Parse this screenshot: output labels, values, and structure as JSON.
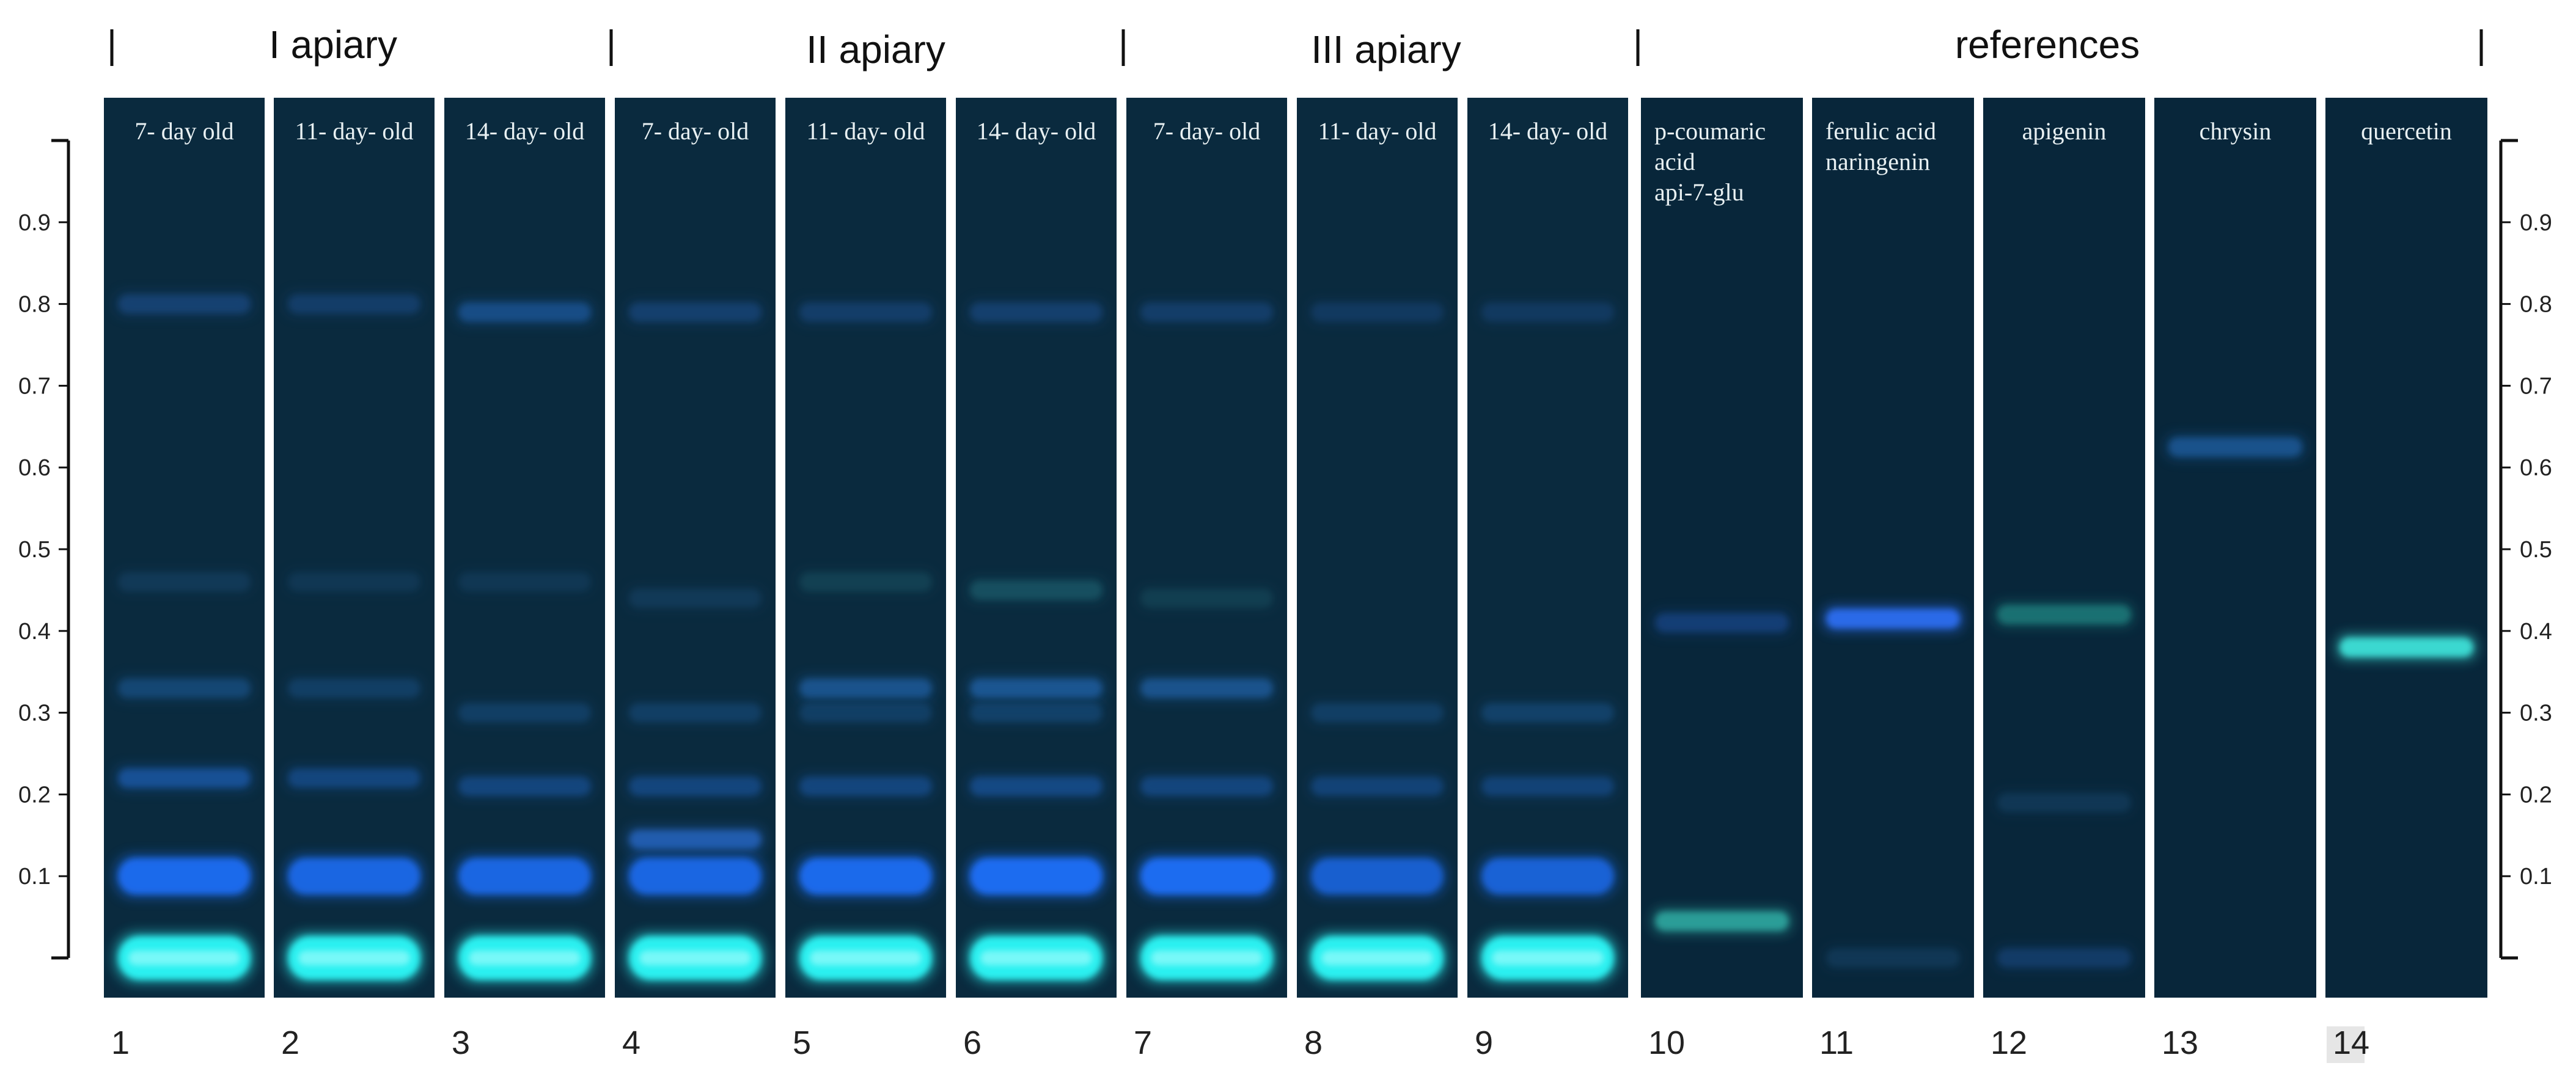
{
  "figure": {
    "background": "#ffffff",
    "plate_color": "#0a2a3e",
    "separator_color": "#ffffff"
  },
  "groups": [
    {
      "title": "I apiary",
      "lanes": [
        1,
        2,
        3
      ]
    },
    {
      "title": "II apiary",
      "lanes": [
        4,
        5,
        6
      ]
    },
    {
      "title": "III apiary",
      "lanes": [
        7,
        8,
        9
      ]
    },
    {
      "title": "references",
      "lanes": [
        10,
        11,
        12,
        13,
        14
      ]
    }
  ],
  "rf_axis": {
    "ticks": [
      "0.9",
      "0.8",
      "0.7",
      "0.6",
      "0.5",
      "0.4",
      "0.3",
      "0.2",
      "0.1"
    ],
    "tick_values": [
      0.9,
      0.8,
      0.7,
      0.6,
      0.5,
      0.4,
      0.3,
      0.2,
      0.1
    ],
    "min": 0.0,
    "max": 1.0
  },
  "lanes": [
    {
      "number": "1",
      "label": [
        "7- day old"
      ],
      "bands": [
        {
          "rf": 0.8,
          "color": "#1a4f8f",
          "intensity": 0.5
        },
        {
          "rf": 0.46,
          "color": "#1a4f7a",
          "intensity": 0.3
        },
        {
          "rf": 0.33,
          "color": "#1f5c9a",
          "intensity": 0.45
        },
        {
          "rf": 0.22,
          "color": "#1f5fb5",
          "intensity": 0.6
        },
        {
          "rf": 0.1,
          "color": "#1e6cf0",
          "intensity": 0.95
        },
        {
          "rf": 0.0,
          "color": "#2cf0f0",
          "intensity": 1.0
        }
      ]
    },
    {
      "number": "2",
      "label": [
        "11- day- old"
      ],
      "bands": [
        {
          "rf": 0.8,
          "color": "#1a4f8f",
          "intensity": 0.4
        },
        {
          "rf": 0.46,
          "color": "#1a4f7a",
          "intensity": 0.25
        },
        {
          "rf": 0.33,
          "color": "#1f5c9a",
          "intensity": 0.3
        },
        {
          "rf": 0.22,
          "color": "#1f5fb5",
          "intensity": 0.4
        },
        {
          "rf": 0.1,
          "color": "#1e6cf0",
          "intensity": 0.85
        },
        {
          "rf": 0.0,
          "color": "#2cf0f0",
          "intensity": 1.0
        }
      ]
    },
    {
      "number": "3",
      "label": [
        "14- day- old"
      ],
      "bands": [
        {
          "rf": 0.79,
          "color": "#1a5aa0",
          "intensity": 0.6
        },
        {
          "rf": 0.46,
          "color": "#1a4f7a",
          "intensity": 0.25
        },
        {
          "rf": 0.3,
          "color": "#1f5c9a",
          "intensity": 0.3
        },
        {
          "rf": 0.21,
          "color": "#1f5fb5",
          "intensity": 0.4
        },
        {
          "rf": 0.1,
          "color": "#1e6cf0",
          "intensity": 0.85
        },
        {
          "rf": 0.0,
          "color": "#2cf0f0",
          "intensity": 1.0
        }
      ]
    },
    {
      "number": "4",
      "label": [
        "7- day- old"
      ],
      "bands": [
        {
          "rf": 0.79,
          "color": "#1a4f8f",
          "intensity": 0.45
        },
        {
          "rf": 0.44,
          "color": "#1a4f7a",
          "intensity": 0.3
        },
        {
          "rf": 0.3,
          "color": "#1f5c9a",
          "intensity": 0.3
        },
        {
          "rf": 0.21,
          "color": "#1f5fb5",
          "intensity": 0.4
        },
        {
          "rf": 0.145,
          "color": "#2a6fd8",
          "intensity": 0.6
        },
        {
          "rf": 0.1,
          "color": "#1e6cf0",
          "intensity": 0.85
        },
        {
          "rf": 0.0,
          "color": "#2cf0f0",
          "intensity": 1.0
        }
      ]
    },
    {
      "number": "5",
      "label": [
        "11- day- old"
      ],
      "bands": [
        {
          "rf": 0.79,
          "color": "#1a4f8f",
          "intensity": 0.4
        },
        {
          "rf": 0.46,
          "color": "#1a5a6a",
          "intensity": 0.35
        },
        {
          "rf": 0.33,
          "color": "#2266b0",
          "intensity": 0.55
        },
        {
          "rf": 0.3,
          "color": "#1f5c9a",
          "intensity": 0.3
        },
        {
          "rf": 0.21,
          "color": "#1f5fb5",
          "intensity": 0.4
        },
        {
          "rf": 0.1,
          "color": "#1e6cf0",
          "intensity": 0.95
        },
        {
          "rf": 0.0,
          "color": "#2cf0f0",
          "intensity": 1.0
        }
      ]
    },
    {
      "number": "6",
      "label": [
        "14- day- old"
      ],
      "bands": [
        {
          "rf": 0.79,
          "color": "#1a4f8f",
          "intensity": 0.45
        },
        {
          "rf": 0.45,
          "color": "#1a6070",
          "intensity": 0.55
        },
        {
          "rf": 0.33,
          "color": "#2266b0",
          "intensity": 0.6
        },
        {
          "rf": 0.3,
          "color": "#1f5c9a",
          "intensity": 0.35
        },
        {
          "rf": 0.21,
          "color": "#1f5fb5",
          "intensity": 0.45
        },
        {
          "rf": 0.1,
          "color": "#1e6cf0",
          "intensity": 1.0
        },
        {
          "rf": 0.0,
          "color": "#2cf0f0",
          "intensity": 1.0
        }
      ]
    },
    {
      "number": "7",
      "label": [
        "7- day- old"
      ],
      "bands": [
        {
          "rf": 0.79,
          "color": "#1a4f8f",
          "intensity": 0.4
        },
        {
          "rf": 0.44,
          "color": "#1a5a6a",
          "intensity": 0.3
        },
        {
          "rf": 0.33,
          "color": "#2266b0",
          "intensity": 0.55
        },
        {
          "rf": 0.21,
          "color": "#1f5fb5",
          "intensity": 0.4
        },
        {
          "rf": 0.1,
          "color": "#1e6cf0",
          "intensity": 1.0
        },
        {
          "rf": 0.0,
          "color": "#2cf0f0",
          "intensity": 1.0
        }
      ]
    },
    {
      "number": "8",
      "label": [
        "11- day- old"
      ],
      "bands": [
        {
          "rf": 0.79,
          "color": "#1a4f8f",
          "intensity": 0.3
        },
        {
          "rf": 0.3,
          "color": "#1f5c9a",
          "intensity": 0.3
        },
        {
          "rf": 0.21,
          "color": "#1f5fb5",
          "intensity": 0.35
        },
        {
          "rf": 0.1,
          "color": "#1e6cf0",
          "intensity": 0.7
        },
        {
          "rf": 0.0,
          "color": "#2cf0f0",
          "intensity": 1.0
        }
      ]
    },
    {
      "number": "9",
      "label": [
        "14- day- old"
      ],
      "bands": [
        {
          "rf": 0.79,
          "color": "#1a4f8f",
          "intensity": 0.3
        },
        {
          "rf": 0.3,
          "color": "#1f5c9a",
          "intensity": 0.35
        },
        {
          "rf": 0.21,
          "color": "#1f5fb5",
          "intensity": 0.35
        },
        {
          "rf": 0.1,
          "color": "#1e6cf0",
          "intensity": 0.75
        },
        {
          "rf": 0.0,
          "color": "#2cf0f0",
          "intensity": 1.0
        }
      ]
    },
    {
      "number": "10",
      "label": [
        "p-coumaric",
        "acid",
        "api-7-glu"
      ],
      "bands": [
        {
          "rf": 0.41,
          "color": "#1f4f9f",
          "intensity": 0.45
        },
        {
          "rf": 0.045,
          "color": "#2fa8a0",
          "intensity": 0.85
        }
      ]
    },
    {
      "number": "11",
      "label": [
        "ferulic acid",
        "naringenin"
      ],
      "bands": [
        {
          "rf": 0.415,
          "color": "#2a6ae8",
          "intensity": 1.0
        },
        {
          "rf": 0.0,
          "color": "#1f4f7a",
          "intensity": 0.3
        }
      ]
    },
    {
      "number": "12",
      "label": [
        "apigenin"
      ],
      "bands": [
        {
          "rf": 0.42,
          "color": "#1f7a7a",
          "intensity": 0.8
        },
        {
          "rf": 0.19,
          "color": "#1a4f7a",
          "intensity": 0.3
        },
        {
          "rf": 0.0,
          "color": "#1f4f8f",
          "intensity": 0.4
        }
      ]
    },
    {
      "number": "13",
      "label": [
        "chrysin"
      ],
      "bands": [
        {
          "rf": 0.625,
          "color": "#1f5a9a",
          "intensity": 0.75
        }
      ]
    },
    {
      "number": "14",
      "label": [
        "quercetin"
      ],
      "bands": [
        {
          "rf": 0.38,
          "color": "#3ad8d0",
          "intensity": 1.0
        }
      ]
    }
  ]
}
